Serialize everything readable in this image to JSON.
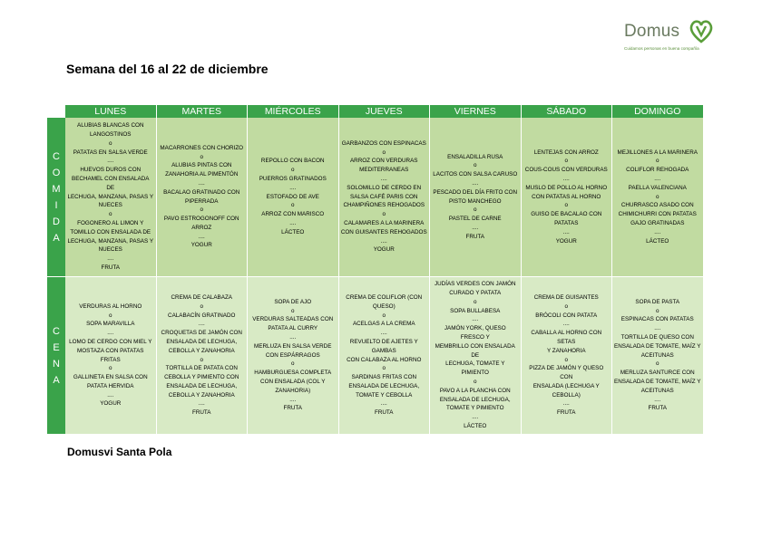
{
  "logo": {
    "name": "Domusvi",
    "tagline": "Cuidamos personas en buena compañía",
    "color": "#5a8f3a"
  },
  "title": "Semana del 16 al 22 de diciembre",
  "footer": "Domusvi Santa Pola",
  "colors": {
    "header": "#3aa34a",
    "comida_bg": "#c1dba1",
    "cena_bg": "#d8eac5"
  },
  "days": [
    "LUNES",
    "MARTES",
    "MIÉRCOLES",
    "JUEVES",
    "VIERNES",
    "SÁBADO",
    "DOMINGO"
  ],
  "sections": [
    {
      "label": "COMIDA",
      "letters": [
        "C",
        "O",
        "M",
        "I",
        "D",
        "A"
      ]
    },
    {
      "label": "CENA",
      "letters": [
        "C",
        "E",
        "N",
        "A"
      ]
    }
  ],
  "comida": [
    [
      "ALUBIAS BLANCAS CON",
      "LANGOSTINOS",
      "o",
      "PATATAS EN SALSA VERDE",
      "....",
      "HUEVOS DUROS CON",
      "BECHAMEL CON ENSALADA DE",
      "LECHUGA, MANZANA, PASAS Y",
      "NUECES",
      "o",
      "FOGONERO AL LIMON Y",
      "TOMILLO CON ENSALADA DE",
      "LECHUGA, MANZANA, PASAS Y",
      "NUECES",
      "....",
      "FRUTA"
    ],
    [
      "MACARRONES CON CHORIZO",
      "o",
      "ALUBIAS PINTAS CON",
      "ZANAHORIA AL PIMENTÓN",
      "....",
      "BACALAO GRATINADO CON",
      "PIPERRADA",
      "o",
      "PAVO ESTROGONOFF CON",
      "ARROZ",
      "....",
      "YOGUR"
    ],
    [
      "REPOLLO CON BACON",
      "o",
      "PUERROS GRATINADOS",
      "....",
      "ESTOFADO DE AVE",
      "o",
      "ARROZ CON MARISCO",
      "....",
      "LÁCTEO"
    ],
    [
      "GARBANZOS CON ESPINACAS",
      "o",
      "ARROZ CON VERDURAS",
      "MEDITERRANEAS",
      "....",
      "SOLOMILLO DE CERDO EN",
      "SALSA CAFÉ PARIS CON",
      "CHAMPIÑONES REHOGADOS",
      "o",
      "CALAMARES A LA MARINERA",
      "CON GUISANTES REHOGADOS",
      "....",
      "YOGUR"
    ],
    [
      "ENSALADILLA RUSA",
      "o",
      "LACITOS CON SALSA CARUSO",
      "....",
      "PESCADO DEL DÍA FRITO CON",
      "PISTO MANCHEGO",
      "o",
      "PASTEL DE CARNE",
      "....",
      "FRUTA"
    ],
    [
      "LENTEJAS CON ARROZ",
      "o",
      "COUS-COUS CON VERDURAS",
      "....",
      "MUSLO DE POLLO AL HORNO",
      "CON PATATAS AL HORNO",
      "o",
      "GUISO DE BACALAO CON",
      "PATATAS",
      "....",
      "YOGUR"
    ],
    [
      "MEJILLONES A LA MARINERA",
      "o",
      "COLIFLOR REHOGADA",
      "....",
      "PAELLA VALENCIANA",
      "o",
      "CHURRASCO ASADO CON",
      "CHIMICHURRI CON PATATAS",
      "GAJO GRATINADAS",
      "....",
      "LÁCTEO"
    ]
  ],
  "cena": [
    [
      "VERDURAS AL HORNO",
      "o",
      "SOPA MARAVILLA",
      "....",
      "LOMO DE CERDO CON MIEL Y",
      "MOSTAZA CON PATATAS FRITAS",
      "o",
      "GALLINETA EN SALSA CON",
      "PATATA HERVIDA",
      "....",
      "YOGUR"
    ],
    [
      "CREMA DE CALABAZA",
      "o",
      "CALABACÍN GRATINADO",
      "....",
      "CROQUETAS DE JAMÓN CON",
      "ENSALADA DE LECHUGA,",
      "CEBOLLA Y ZANAHORIA",
      "o",
      "TORTILLA DE PATATA CON",
      "CEBOLLA Y PIMIENTO CON",
      "ENSALADA DE LECHUGA,",
      "CEBOLLA Y ZANAHORIA",
      "....",
      "FRUTA"
    ],
    [
      "SOPA DE AJO",
      "o",
      "VERDURAS SALTEADAS CON",
      "PATATA AL CURRY",
      "....",
      "MERLUZA EN SALSA VERDE",
      "CON ESPÁRRAGOS",
      "o",
      "HAMBURGUESA COMPLETA",
      "CON ENSALADA (COL Y",
      "ZANAHORIA)",
      "....",
      "FRUTA"
    ],
    [
      "CREMA DE COLIFLOR (CON",
      "QUESO)",
      "o",
      "ACELGAS A LA CREMA",
      "....",
      "REVUELTO DE AJETES Y GAMBAS",
      "CON CALABAZA AL HORNO",
      "o",
      "SARDINAS FRITAS CON",
      "ENSALADA DE LECHUGA,",
      "TOMATE Y CEBOLLA",
      "....",
      "FRUTA"
    ],
    [
      "JUDÍAS VERDES CON JAMÓN",
      "CURADO Y PATATA",
      "o",
      "SOPA BULLABESA",
      "....",
      "JAMÓN YORK, QUESO FRESCO Y",
      "MEMBRILLO CON ENSALADA DE",
      "LECHUGA, TOMATE Y PIMIENTO",
      "o",
      "PAVO A LA PLANCHA CON",
      "ENSALADA DE LECHUGA,",
      "TOMATE Y PIMIENTO",
      "....",
      "LÁCTEO"
    ],
    [
      "CREMA DE GUISANTES",
      "o",
      "BRÓCOLI CON PATATA",
      "....",
      "CABALLA AL HORNO CON SETAS",
      "Y ZANAHORIA",
      "o",
      "PIZZA DE JAMÓN Y QUESO CON",
      "ENSALADA (LECHUGA Y",
      "CEBOLLA)",
      "....",
      "FRUTA"
    ],
    [
      "SOPA DE PASTA",
      "o",
      "ESPINACAS CON PATATAS",
      "....",
      "TORTILLA DE QUESO CON",
      "ENSALADA DE TOMATE, MAÍZ Y",
      "ACEITUNAS",
      "o",
      "MERLUZA SANTURCE CON",
      "ENSALADA DE TOMATE, MAÍZ Y",
      "ACEITUNAS",
      "....",
      "FRUTA"
    ]
  ]
}
